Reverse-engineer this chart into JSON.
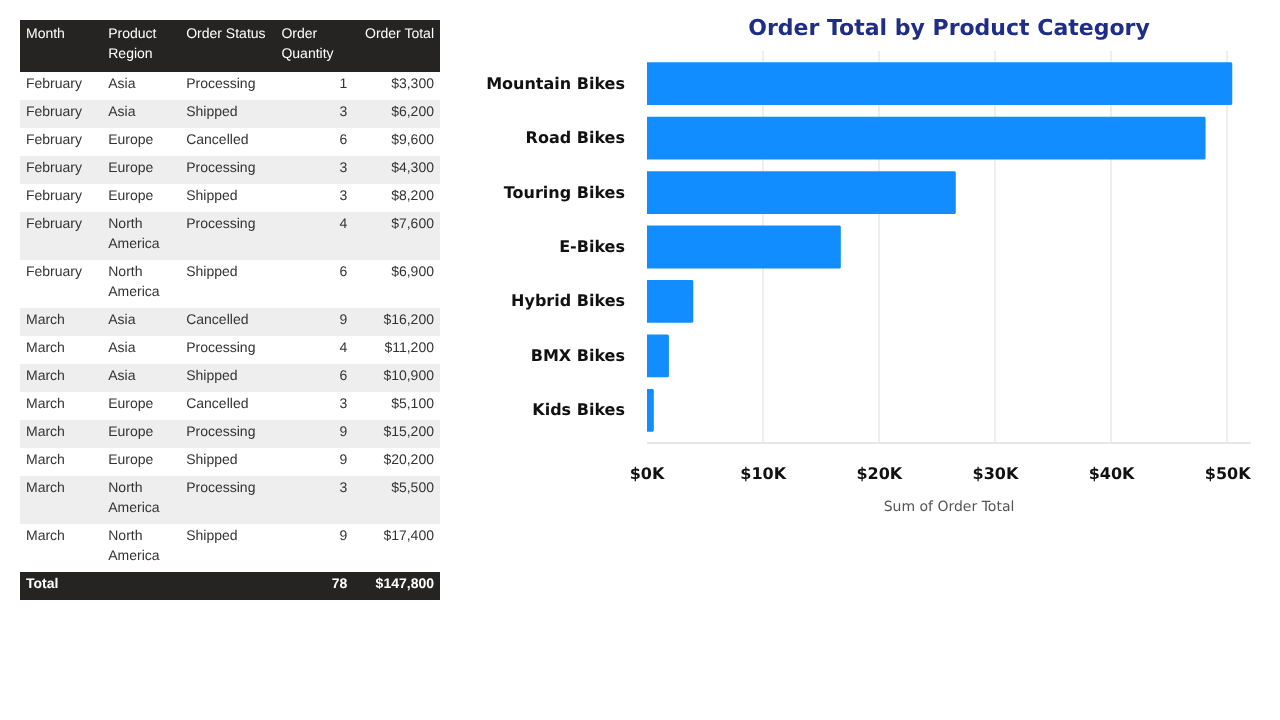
{
  "chart_data": [
    {
      "type": "other",
      "categories": [
        "Month",
        "Product Region",
        "Order Status",
        "Order Quantity",
        "Order Total"
      ],
      "cell_labels": [
        [
          "February",
          "Asia",
          "Processing",
          "1",
          "$3,300"
        ],
        [
          "February",
          "Asia",
          "Shipped",
          "3",
          "$6,200"
        ],
        [
          "February",
          "Europe",
          "Cancelled",
          "6",
          "$9,600"
        ],
        [
          "February",
          "Europe",
          "Processing",
          "3",
          "$4,300"
        ],
        [
          "February",
          "Europe",
          "Shipped",
          "3",
          "$8,200"
        ],
        [
          "February",
          "North America",
          "Processing",
          "4",
          "$7,600"
        ],
        [
          "February",
          "North America",
          "Shipped",
          "6",
          "$6,900"
        ],
        [
          "March",
          "Asia",
          "Cancelled",
          "9",
          "$16,200"
        ],
        [
          "March",
          "Asia",
          "Processing",
          "4",
          "$11,200"
        ],
        [
          "March",
          "Asia",
          "Shipped",
          "6",
          "$10,900"
        ],
        [
          "March",
          "Europe",
          "Cancelled",
          "3",
          "$5,100"
        ],
        [
          "March",
          "Europe",
          "Processing",
          "9",
          "$15,200"
        ],
        [
          "March",
          "Europe",
          "Shipped",
          "9",
          "$20,200"
        ],
        [
          "March",
          "North America",
          "Processing",
          "3",
          "$5,500"
        ],
        [
          "March",
          "North America",
          "Shipped",
          "9",
          "$17,400"
        ],
        [
          "Total",
          null,
          null,
          "78",
          "$147,800"
        ]
      ]
    },
    {
      "type": "bar",
      "orientation": "horizontal",
      "title": "Order Total by Product Category",
      "xlabel": "Sum of Order Total",
      "categories": [
        "Mountain Bikes",
        "Road Bikes",
        "Touring Bikes",
        "E-Bikes",
        "Hybrid Bikes",
        "BMX Bikes",
        "Kids Bikes"
      ],
      "values": [
        50300,
        48000,
        26500,
        16600,
        3900,
        1800,
        500
      ],
      "color": "#118dff",
      "xlim": [
        0,
        52000
      ],
      "xticks": [
        {
          "value": 0,
          "label": "$0K"
        },
        {
          "value": 10000,
          "label": "$10K"
        },
        {
          "value": 20000,
          "label": "$20K"
        },
        {
          "value": 30000,
          "label": "$30K"
        },
        {
          "value": 40000,
          "label": "$40K"
        },
        {
          "value": 50000,
          "label": "$50K"
        }
      ],
      "grid": "x"
    }
  ]
}
